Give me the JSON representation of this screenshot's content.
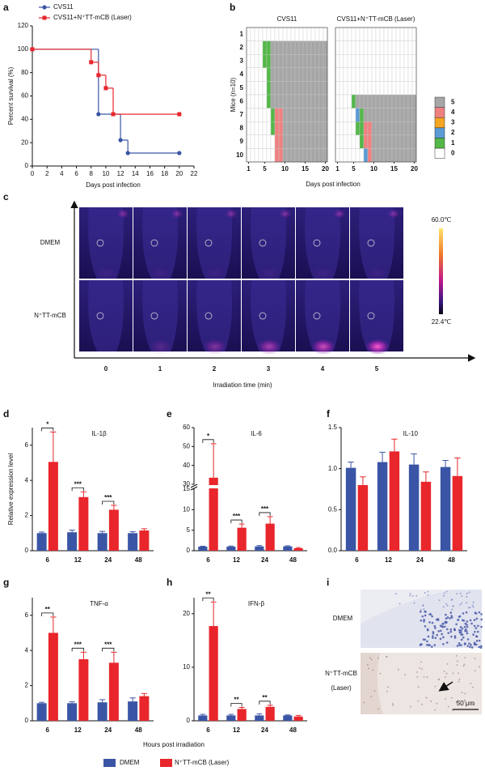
{
  "chart_data": [
    {
      "panel": "a",
      "type": "survival",
      "xlabel": "Days post infection",
      "ylabel": "Percent survival (%)",
      "xlim": [
        0,
        22
      ],
      "xticks": [
        0,
        2,
        4,
        6,
        8,
        10,
        12,
        14,
        16,
        18,
        20,
        22
      ],
      "ylim": [
        0,
        120
      ],
      "yticks": [
        0,
        20,
        40,
        60,
        80,
        100,
        120
      ],
      "legend": "upper left",
      "series": [
        {
          "name": "CVS11",
          "color": "#3a55a5",
          "marker": "circle",
          "x": [
            0,
            9,
            12,
            13,
            20
          ],
          "values": [
            100,
            44.4,
            22.2,
            11.1,
            11.1
          ]
        },
        {
          "name": "CVS11+N⁺TT-mCB (Laser)",
          "color": "#e8262b",
          "marker": "square",
          "x": [
            0,
            8,
            9,
            10,
            11,
            20
          ],
          "values": [
            100,
            88.9,
            77.8,
            66.7,
            44.4,
            44.4
          ]
        }
      ]
    },
    {
      "panel": "b",
      "type": "heatmap",
      "ylabel": "Mice (n=10)",
      "xlabel": "Days post infection",
      "xlim": [
        1,
        20
      ],
      "xticks": [
        1,
        5,
        10,
        15,
        20
      ],
      "yticks": [
        1,
        2,
        3,
        4,
        5,
        6,
        7,
        8,
        9,
        10
      ],
      "levels": [
        0,
        1,
        2,
        3,
        4,
        5
      ],
      "colors": [
        "#ffffff",
        "#53b848",
        "#5b9bd5",
        "#f5a623",
        "#f08080",
        "#a6a6a6"
      ],
      "groups": [
        {
          "title": "CVS11",
          "values": [
            [
              0,
              0,
              0,
              0,
              0,
              0,
              0,
              0,
              0,
              0,
              0,
              0,
              0,
              0,
              0,
              0,
              0,
              0,
              0,
              0
            ],
            [
              0,
              0,
              0,
              0,
              1,
              1,
              5,
              5,
              5,
              5,
              5,
              5,
              5,
              5,
              5,
              5,
              5,
              5,
              5,
              5
            ],
            [
              0,
              0,
              0,
              0,
              1,
              1,
              5,
              5,
              5,
              5,
              5,
              5,
              5,
              5,
              5,
              5,
              5,
              5,
              5,
              5
            ],
            [
              0,
              0,
              0,
              0,
              0,
              1,
              5,
              5,
              5,
              5,
              5,
              5,
              5,
              5,
              5,
              5,
              5,
              5,
              5,
              5
            ],
            [
              0,
              0,
              0,
              0,
              0,
              1,
              5,
              5,
              5,
              5,
              5,
              5,
              5,
              5,
              5,
              5,
              5,
              5,
              5,
              5
            ],
            [
              0,
              0,
              0,
              0,
              0,
              1,
              5,
              5,
              5,
              5,
              5,
              5,
              5,
              5,
              5,
              5,
              5,
              5,
              5,
              5
            ],
            [
              0,
              0,
              0,
              0,
              0,
              0,
              1,
              4,
              4,
              5,
              5,
              5,
              5,
              5,
              5,
              5,
              5,
              5,
              5,
              5
            ],
            [
              0,
              0,
              0,
              0,
              0,
              0,
              1,
              4,
              4,
              5,
              5,
              5,
              5,
              5,
              5,
              5,
              5,
              5,
              5,
              5
            ],
            [
              0,
              0,
              0,
              0,
              0,
              0,
              0,
              4,
              4,
              5,
              5,
              5,
              5,
              5,
              5,
              5,
              5,
              5,
              5,
              5
            ],
            [
              0,
              0,
              0,
              0,
              0,
              0,
              0,
              4,
              4,
              5,
              5,
              5,
              5,
              5,
              5,
              5,
              5,
              5,
              5,
              5
            ]
          ]
        },
        {
          "title": "CVS11+N⁺TT-mCB (Laser)",
          "values": [
            [
              0,
              0,
              0,
              0,
              0,
              0,
              0,
              0,
              0,
              0,
              0,
              0,
              0,
              0,
              0,
              0,
              0,
              0,
              0,
              0
            ],
            [
              0,
              0,
              0,
              0,
              0,
              0,
              0,
              0,
              0,
              0,
              0,
              0,
              0,
              0,
              0,
              0,
              0,
              0,
              0,
              0
            ],
            [
              0,
              0,
              0,
              0,
              0,
              0,
              0,
              0,
              0,
              0,
              0,
              0,
              0,
              0,
              0,
              0,
              0,
              0,
              0,
              0
            ],
            [
              0,
              0,
              0,
              0,
              0,
              0,
              0,
              0,
              0,
              0,
              0,
              0,
              0,
              0,
              0,
              0,
              0,
              0,
              0,
              0
            ],
            [
              0,
              0,
              0,
              0,
              0,
              0,
              0,
              0,
              0,
              0,
              0,
              0,
              0,
              0,
              0,
              0,
              0,
              0,
              0,
              0
            ],
            [
              0,
              0,
              0,
              0,
              1,
              5,
              5,
              5,
              5,
              5,
              5,
              5,
              5,
              5,
              5,
              5,
              5,
              5,
              5,
              5
            ],
            [
              0,
              0,
              0,
              0,
              0,
              2,
              1,
              5,
              5,
              5,
              5,
              5,
              5,
              5,
              5,
              5,
              5,
              5,
              5,
              5
            ],
            [
              0,
              0,
              0,
              0,
              0,
              1,
              1,
              4,
              4,
              5,
              5,
              5,
              5,
              5,
              5,
              5,
              5,
              5,
              5,
              5
            ],
            [
              0,
              0,
              0,
              0,
              0,
              0,
              1,
              4,
              4,
              5,
              5,
              5,
              5,
              5,
              5,
              5,
              5,
              5,
              5,
              5
            ],
            [
              0,
              0,
              0,
              0,
              0,
              0,
              0,
              2,
              4,
              5,
              5,
              5,
              5,
              5,
              5,
              5,
              5,
              5,
              5,
              5
            ]
          ]
        }
      ]
    },
    {
      "panel": "c",
      "type": "image-grid",
      "rows": [
        "DMEM",
        "N⁺TT-mCB"
      ],
      "categories": [
        0,
        1,
        2,
        3,
        4,
        5
      ],
      "xlabel": "Irradiation time (min)",
      "colorbar": [
        "60.0℃",
        "22.4℃"
      ]
    },
    {
      "panel": "d",
      "type": "bar",
      "title": "IL-1β",
      "ylabel": "Relative expression level",
      "categories": [
        6,
        12,
        24,
        48
      ],
      "ylim": [
        0,
        7
      ],
      "yticks": [
        0,
        2,
        4,
        6
      ],
      "series": [
        {
          "name": "DMEM",
          "color": "#3a55a5",
          "values": [
            1.0,
            1.05,
            1.0,
            1.0
          ],
          "errors": [
            0.06,
            0.12,
            0.1,
            0.08
          ]
        },
        {
          "name": "N⁺TT-mCB (Laser)",
          "color": "#e8262b",
          "values": [
            5.05,
            3.05,
            2.33,
            1.15
          ],
          "errors": [
            1.7,
            0.3,
            0.25,
            0.1
          ]
        }
      ],
      "significance": [
        "*",
        "***",
        "***",
        null
      ]
    },
    {
      "panel": "e",
      "type": "bar",
      "title": "IL-6",
      "categories": [
        6,
        12,
        24,
        48
      ],
      "ylim": [
        0,
        60
      ],
      "ybreak": [
        15,
        30
      ],
      "yticks": [
        0,
        5,
        10,
        15,
        30,
        40,
        50,
        60
      ],
      "series": [
        {
          "name": "DMEM",
          "color": "#3a55a5",
          "values": [
            1.0,
            1.0,
            1.05,
            1.05
          ],
          "errors": [
            0.1,
            0.15,
            0.2,
            0.15
          ]
        },
        {
          "name": "N⁺TT-mCB (Laser)",
          "color": "#e8262b",
          "values": [
            33.5,
            5.6,
            6.6,
            0.6
          ],
          "errors": [
            18,
            0.9,
            1.7,
            0.15
          ]
        }
      ],
      "significance": [
        "*",
        "***",
        "***",
        null
      ]
    },
    {
      "panel": "f",
      "type": "bar",
      "title": "IL-10",
      "categories": [
        6,
        12,
        24,
        48
      ],
      "ylim": [
        0,
        1.5
      ],
      "yticks": [
        {
          "value": 0,
          "label": "0.0"
        },
        0.5,
        {
          "value": 1,
          "label": "1.0"
        },
        1.5
      ],
      "series": [
        {
          "name": "DMEM",
          "color": "#3a55a5",
          "values": [
            1.01,
            1.08,
            1.05,
            1.02
          ],
          "errors": [
            0.07,
            0.12,
            0.13,
            0.08
          ]
        },
        {
          "name": "N⁺TT-mCB (Laser)",
          "color": "#e8262b",
          "values": [
            0.8,
            1.21,
            0.84,
            0.91
          ],
          "errors": [
            0.1,
            0.15,
            0.12,
            0.22
          ]
        }
      ]
    },
    {
      "panel": "g",
      "type": "bar",
      "title": "TNF-α",
      "categories": [
        6,
        12,
        24,
        48
      ],
      "ylim": [
        0,
        7
      ],
      "yticks": [
        0,
        2,
        4,
        6
      ],
      "series": [
        {
          "name": "DMEM",
          "color": "#3a55a5",
          "values": [
            1.0,
            1.0,
            1.05,
            1.1
          ],
          "errors": [
            0.05,
            0.08,
            0.15,
            0.2
          ]
        },
        {
          "name": "N⁺TT-mCB (Laser)",
          "color": "#e8262b",
          "values": [
            5.0,
            3.5,
            3.3,
            1.4
          ],
          "errors": [
            0.9,
            0.4,
            0.6,
            0.15
          ]
        }
      ],
      "significance": [
        "**",
        "***",
        "***",
        null
      ]
    },
    {
      "panel": "h",
      "type": "bar",
      "title": "IFN-β",
      "xlabel": "Hours post irradiation",
      "categories": [
        6,
        12,
        24,
        48
      ],
      "ylim": [
        0,
        23
      ],
      "yticks": [
        0,
        10,
        20
      ],
      "series": [
        {
          "name": "DMEM",
          "color": "#3a55a5",
          "values": [
            1.0,
            1.0,
            1.0,
            1.0
          ],
          "errors": [
            0.2,
            0.2,
            0.3,
            0.1
          ]
        },
        {
          "name": "N⁺TT-mCB (Laser)",
          "color": "#e8262b",
          "values": [
            17.7,
            2.2,
            2.6,
            0.8
          ],
          "errors": [
            4.5,
            0.3,
            0.3,
            0.2
          ]
        }
      ],
      "significance": [
        "**",
        "**",
        "**",
        null
      ]
    },
    {
      "panel": "i",
      "type": "micrograph",
      "rows": [
        "DMEM",
        "N⁺TT-mCB"
      ],
      "note": "(Laser)",
      "scale_bar": "50 μm"
    }
  ]
}
